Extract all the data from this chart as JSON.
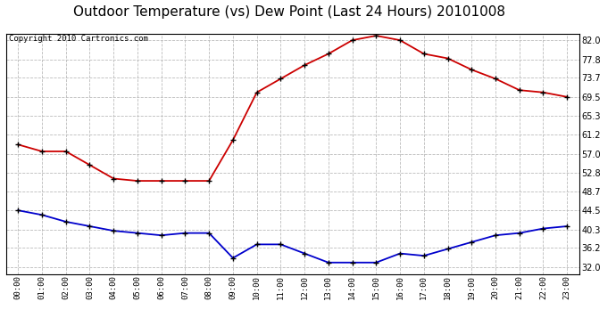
{
  "title": "Outdoor Temperature (vs) Dew Point (Last 24 Hours) 20101008",
  "copyright": "Copyright 2010 Cartronics.com",
  "x_labels": [
    "00:00",
    "01:00",
    "02:00",
    "03:00",
    "04:00",
    "05:00",
    "06:00",
    "07:00",
    "08:00",
    "09:00",
    "10:00",
    "11:00",
    "12:00",
    "13:00",
    "14:00",
    "15:00",
    "16:00",
    "17:00",
    "18:00",
    "19:00",
    "20:00",
    "21:00",
    "22:00",
    "23:00"
  ],
  "temp_red": [
    59.0,
    57.5,
    57.5,
    54.5,
    51.5,
    51.0,
    51.0,
    51.0,
    51.0,
    60.0,
    70.5,
    73.5,
    76.5,
    79.0,
    82.0,
    83.0,
    82.0,
    79.0,
    78.0,
    75.5,
    73.5,
    71.0,
    70.5,
    69.5
  ],
  "dew_blue": [
    44.5,
    43.5,
    42.0,
    41.0,
    40.0,
    39.5,
    39.0,
    39.5,
    39.5,
    34.0,
    37.0,
    37.0,
    35.0,
    33.0,
    33.0,
    33.0,
    35.0,
    34.5,
    36.0,
    37.5,
    39.0,
    39.5,
    40.5,
    41.0
  ],
  "y_ticks": [
    32.0,
    36.2,
    40.3,
    44.5,
    48.7,
    52.8,
    57.0,
    61.2,
    65.3,
    69.5,
    73.7,
    77.8,
    82.0
  ],
  "ylim": [
    30.5,
    83.5
  ],
  "xlim": [
    -0.5,
    23.5
  ],
  "bg_color": "#ffffff",
  "grid_color": "#bbbbbb",
  "red_color": "#cc0000",
  "blue_color": "#0000cc",
  "title_fontsize": 11,
  "copyright_fontsize": 6.5
}
